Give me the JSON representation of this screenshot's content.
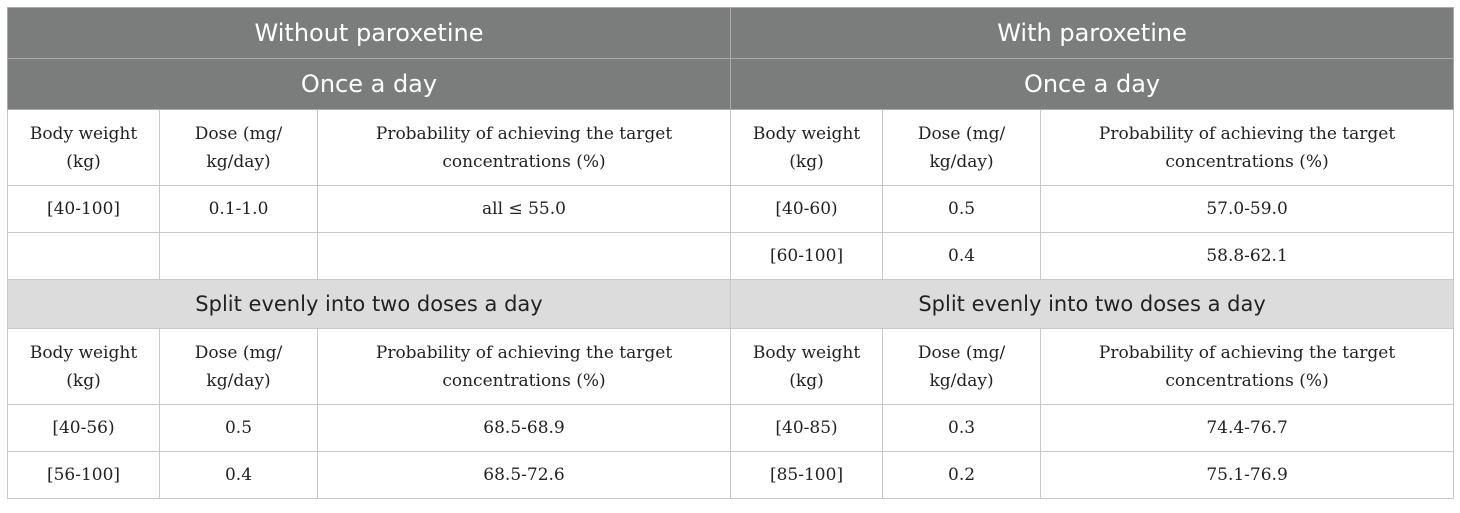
{
  "header": {
    "left": "Without paroxetine",
    "right": "With paroxetine"
  },
  "sections": [
    {
      "left_title": "Once a day",
      "right_title": "Once a day",
      "columns": [
        "Body weight (kg)",
        "Dose (mg/ kg/day)",
        "Probability of achieving the target concentrations (%)"
      ],
      "left_rows": [
        [
          "[40-100]",
          "0.1-1.0",
          "all ≤ 55.0"
        ],
        [
          "",
          "",
          ""
        ]
      ],
      "right_rows": [
        [
          "[40-60)",
          "0.5",
          "57.0-59.0"
        ],
        [
          "[60-100]",
          "0.4",
          "58.8-62.1"
        ]
      ]
    },
    {
      "left_title": "Split evenly into two doses a day",
      "right_title": "Split evenly into two doses a day",
      "columns": [
        "Body weight (kg)",
        "Dose (mg/ kg/day)",
        "Probability of achieving the target concentrations (%)"
      ],
      "left_rows": [
        [
          "[40-56)",
          "0.5",
          "68.5-68.9"
        ],
        [
          "[56-100]",
          "0.4",
          "68.5-72.6"
        ]
      ],
      "right_rows": [
        [
          "[40-85)",
          "0.3",
          "74.4-76.7"
        ],
        [
          "[85-100]",
          "0.2",
          "75.1-76.9"
        ]
      ]
    }
  ]
}
